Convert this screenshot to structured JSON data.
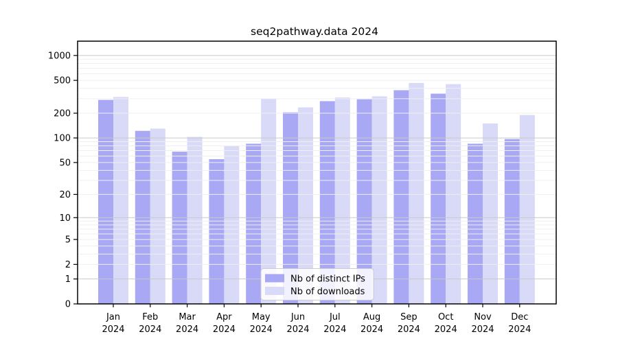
{
  "chart_data": {
    "type": "bar",
    "title": "seq2pathway.data 2024",
    "categories": [
      "Jan",
      "Feb",
      "Mar",
      "Apr",
      "May",
      "Jun",
      "Jul",
      "Aug",
      "Sep",
      "Oct",
      "Nov",
      "Dec"
    ],
    "category_year": "2024",
    "series": [
      {
        "name": "Nb of distinct IPs",
        "color": "#a8a8f5",
        "values": [
          290,
          122,
          68,
          55,
          85,
          205,
          280,
          295,
          380,
          345,
          85,
          97
        ]
      },
      {
        "name": "Nb of downloads",
        "color": "#d9d9f8",
        "values": [
          315,
          130,
          103,
          80,
          300,
          235,
          310,
          320,
          465,
          450,
          150,
          190
        ]
      }
    ],
    "y_axis": {
      "scale": "log10(value+1)",
      "tick_values": [
        0,
        1,
        2,
        5,
        10,
        20,
        50,
        100,
        200,
        500,
        1000
      ],
      "range_max": 1500
    },
    "x_axis": {
      "label_line2": "2024"
    },
    "grid": "minor log gridlines on, majors darker",
    "legend_position": "inside-bottom-center",
    "colors": {
      "major_gridline": "#c9c9c9",
      "minor_gridline": "#efefef",
      "axis_box": "#000000",
      "legend_border": "#cccccc",
      "legend_bg": "rgba(255,255,255,0.85)"
    }
  }
}
